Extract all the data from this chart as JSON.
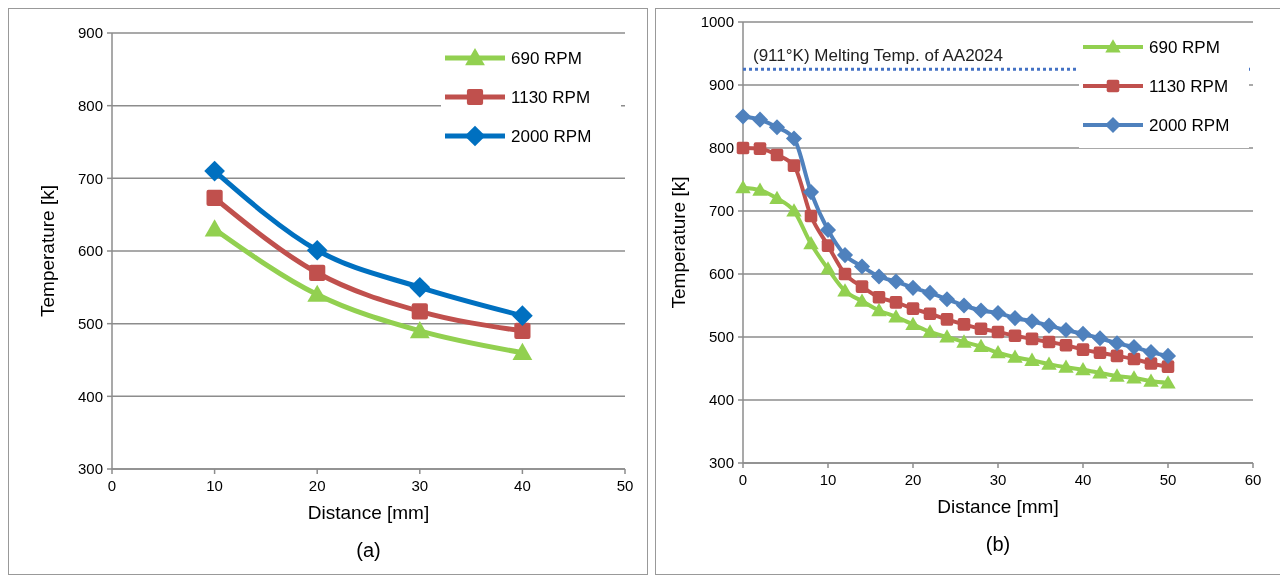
{
  "chart_data": [
    {
      "type": "line",
      "xlabel": "Distance [mm]",
      "ylabel": "Temperature [k]",
      "x": [
        10,
        20,
        30,
        40
      ],
      "xlim": [
        0,
        50
      ],
      "xticks": [
        0,
        10,
        20,
        30,
        40,
        50
      ],
      "ylim": [
        300,
        900
      ],
      "yticks": [
        300,
        400,
        500,
        600,
        700,
        800,
        900
      ],
      "grid": "y",
      "legend": "top right",
      "annotations": [
        "(a)"
      ],
      "series": [
        {
          "name": "690 RPM",
          "color": "#92d050",
          "marker": "triangle",
          "values": [
            630,
            540,
            490,
            460
          ]
        },
        {
          "name": "1130 RPM",
          "color": "#c0504d",
          "marker": "square",
          "values": [
            673,
            570,
            517,
            490
          ]
        },
        {
          "name": "2000 RPM",
          "color": "#0070c0",
          "marker": "diamond",
          "values": [
            710,
            601,
            550,
            511
          ]
        }
      ]
    },
    {
      "type": "line",
      "xlabel": "Distance [mm]",
      "ylabel": "Temperature [k]",
      "x": [
        0,
        2,
        4,
        6,
        8,
        10,
        12,
        14,
        16,
        18,
        20,
        22,
        24,
        26,
        28,
        30,
        32,
        34,
        36,
        38,
        40,
        42,
        44,
        46,
        48,
        50
      ],
      "xlim": [
        0,
        60
      ],
      "xticks": [
        0,
        10,
        20,
        30,
        40,
        50,
        60
      ],
      "ylim": [
        300,
        1000
      ],
      "yticks": [
        300,
        400,
        500,
        600,
        700,
        800,
        900,
        1000
      ],
      "grid": "y",
      "legend": "top right",
      "annotations": [
        "(b)"
      ],
      "ref_lines": [
        {
          "axis": "y",
          "value": 925,
          "label": "(911°K) Melting Temp. of AA2024",
          "color": "#4472c4",
          "line_style": "dotted"
        }
      ],
      "series": [
        {
          "name": "690 RPM",
          "color": "#92d050",
          "marker": "triangle",
          "values": [
            737,
            733,
            720,
            700,
            648,
            608,
            573,
            557,
            542,
            532,
            520,
            508,
            500,
            492,
            485,
            475,
            468,
            463,
            457,
            452,
            448,
            443,
            438,
            435,
            430,
            427
          ]
        },
        {
          "name": "1130 RPM",
          "color": "#c0504d",
          "marker": "square",
          "values": [
            800,
            799,
            789,
            772,
            692,
            645,
            600,
            580,
            563,
            555,
            545,
            537,
            528,
            520,
            513,
            508,
            502,
            497,
            492,
            487,
            480,
            475,
            470,
            465,
            458,
            453
          ]
        },
        {
          "name": "2000 RPM",
          "color": "#4f81bd",
          "marker": "diamond",
          "values": [
            850,
            845,
            833,
            815,
            730,
            670,
            630,
            612,
            596,
            588,
            578,
            570,
            560,
            550,
            542,
            538,
            530,
            525,
            518,
            511,
            505,
            498,
            490,
            484,
            476,
            470
          ]
        }
      ]
    }
  ]
}
